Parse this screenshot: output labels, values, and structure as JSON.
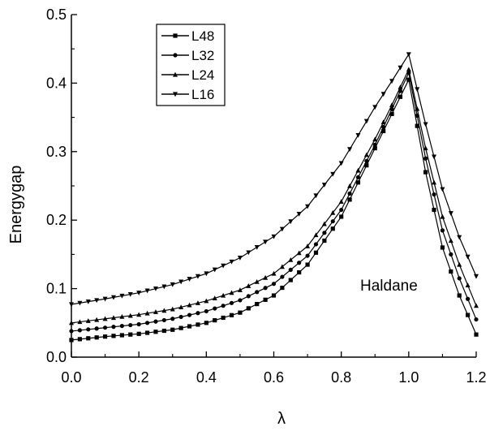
{
  "chart_data": {
    "type": "line",
    "xlabel": "λ",
    "ylabel": "Energygap",
    "xlim": [
      0.0,
      1.2
    ],
    "ylim": [
      0.0,
      0.5
    ],
    "x_ticks": [
      "0.0",
      "0.2",
      "0.4",
      "0.6",
      "0.8",
      "1.0",
      "1.2"
    ],
    "y_ticks": [
      "0.0",
      "0.1",
      "0.2",
      "0.3",
      "0.4",
      "0.5"
    ],
    "legend_position": "top-left",
    "annotation": "Haldane",
    "series": [
      {
        "name": "L48",
        "marker": "square",
        "points": [
          [
            0.0,
            0.025
          ],
          [
            0.1,
            0.03
          ],
          [
            0.2,
            0.034
          ],
          [
            0.3,
            0.04
          ],
          [
            0.4,
            0.05
          ],
          [
            0.5,
            0.065
          ],
          [
            0.6,
            0.09
          ],
          [
            0.7,
            0.135
          ],
          [
            0.8,
            0.205
          ],
          [
            0.9,
            0.305
          ],
          [
            0.95,
            0.355
          ],
          [
            1.0,
            0.405
          ],
          [
            1.05,
            0.27
          ],
          [
            1.1,
            0.16
          ],
          [
            1.15,
            0.09
          ],
          [
            1.2,
            0.033
          ]
        ]
      },
      {
        "name": "L32",
        "marker": "circle",
        "points": [
          [
            0.0,
            0.038
          ],
          [
            0.1,
            0.043
          ],
          [
            0.2,
            0.048
          ],
          [
            0.3,
            0.056
          ],
          [
            0.4,
            0.067
          ],
          [
            0.5,
            0.083
          ],
          [
            0.6,
            0.107
          ],
          [
            0.7,
            0.148
          ],
          [
            0.8,
            0.215
          ],
          [
            0.9,
            0.31
          ],
          [
            0.95,
            0.362
          ],
          [
            1.0,
            0.415
          ],
          [
            1.05,
            0.29
          ],
          [
            1.1,
            0.185
          ],
          [
            1.15,
            0.115
          ],
          [
            1.2,
            0.055
          ]
        ]
      },
      {
        "name": "L24",
        "marker": "triangle-up",
        "points": [
          [
            0.0,
            0.05
          ],
          [
            0.1,
            0.056
          ],
          [
            0.2,
            0.062
          ],
          [
            0.3,
            0.07
          ],
          [
            0.4,
            0.082
          ],
          [
            0.5,
            0.098
          ],
          [
            0.6,
            0.122
          ],
          [
            0.7,
            0.162
          ],
          [
            0.8,
            0.227
          ],
          [
            0.9,
            0.318
          ],
          [
            0.95,
            0.368
          ],
          [
            1.0,
            0.42
          ],
          [
            1.05,
            0.305
          ],
          [
            1.1,
            0.205
          ],
          [
            1.15,
            0.135
          ],
          [
            1.2,
            0.075
          ]
        ]
      },
      {
        "name": "L16",
        "marker": "triangle-down",
        "points": [
          [
            0.0,
            0.077
          ],
          [
            0.1,
            0.085
          ],
          [
            0.2,
            0.094
          ],
          [
            0.3,
            0.106
          ],
          [
            0.4,
            0.122
          ],
          [
            0.5,
            0.145
          ],
          [
            0.6,
            0.176
          ],
          [
            0.7,
            0.22
          ],
          [
            0.8,
            0.283
          ],
          [
            0.9,
            0.365
          ],
          [
            0.95,
            0.403
          ],
          [
            1.0,
            0.442
          ],
          [
            1.05,
            0.34
          ],
          [
            1.1,
            0.245
          ],
          [
            1.15,
            0.175
          ],
          [
            1.2,
            0.118
          ]
        ]
      }
    ]
  }
}
